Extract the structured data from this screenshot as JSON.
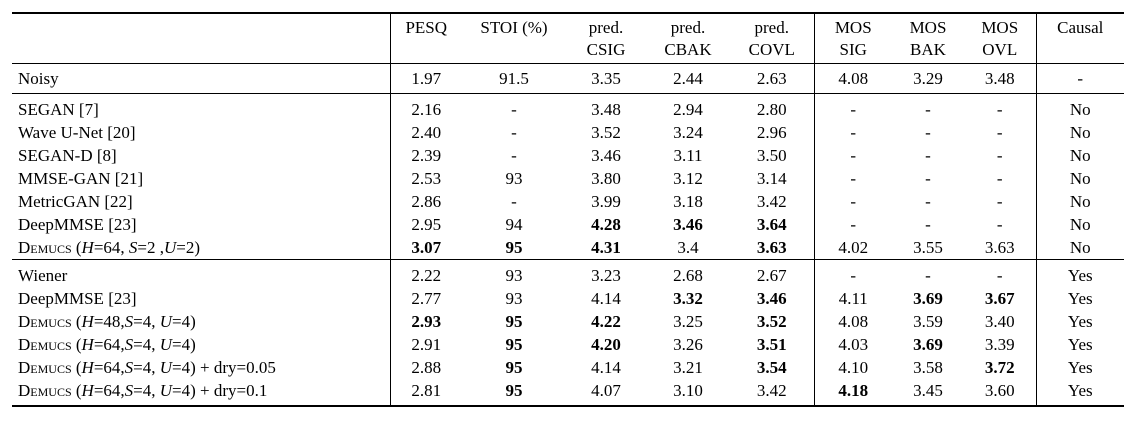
{
  "header": {
    "method": "",
    "pesq": "PESQ",
    "stoi": "STOI (%)",
    "csig": [
      "pred.",
      "CSIG"
    ],
    "cbak": [
      "pred.",
      "CBAK"
    ],
    "covl": [
      "pred.",
      "COVL"
    ],
    "mos_sig": [
      "MOS",
      "SIG"
    ],
    "mos_bak": [
      "MOS",
      "BAK"
    ],
    "mos_ovl": [
      "MOS",
      "OVL"
    ],
    "causal": "Causal"
  },
  "groups": [
    [
      {
        "name": "Noisy",
        "cells": [
          {
            "v": "1.97"
          },
          {
            "v": "91.5"
          },
          {
            "v": "3.35"
          },
          {
            "v": "2.44"
          },
          {
            "v": "2.63"
          },
          {
            "v": "4.08"
          },
          {
            "v": "3.29"
          },
          {
            "v": "3.48"
          },
          {
            "v": "-"
          }
        ]
      }
    ],
    [
      {
        "name": "SEGAN [7]",
        "cells": [
          {
            "v": "2.16"
          },
          {
            "v": "-"
          },
          {
            "v": "3.48"
          },
          {
            "v": "2.94"
          },
          {
            "v": "2.80"
          },
          {
            "v": "-"
          },
          {
            "v": "-"
          },
          {
            "v": "-"
          },
          {
            "v": "No"
          }
        ]
      },
      {
        "name": "Wave U-Net [20]",
        "cells": [
          {
            "v": "2.40"
          },
          {
            "v": "-"
          },
          {
            "v": "3.52"
          },
          {
            "v": "3.24"
          },
          {
            "v": "2.96"
          },
          {
            "v": "-"
          },
          {
            "v": "-"
          },
          {
            "v": "-"
          },
          {
            "v": "No"
          }
        ]
      },
      {
        "name": "SEGAN-D [8]",
        "cells": [
          {
            "v": "2.39"
          },
          {
            "v": "-"
          },
          {
            "v": "3.46"
          },
          {
            "v": "3.11"
          },
          {
            "v": "3.50"
          },
          {
            "v": "-"
          },
          {
            "v": "-"
          },
          {
            "v": "-"
          },
          {
            "v": "No"
          }
        ]
      },
      {
        "name": "MMSE-GAN [21]",
        "cells": [
          {
            "v": "2.53"
          },
          {
            "v": "93"
          },
          {
            "v": "3.80"
          },
          {
            "v": "3.12"
          },
          {
            "v": "3.14"
          },
          {
            "v": "-"
          },
          {
            "v": "-"
          },
          {
            "v": "-"
          },
          {
            "v": "No"
          }
        ]
      },
      {
        "name": "MetricGAN [22]",
        "cells": [
          {
            "v": "2.86"
          },
          {
            "v": "-"
          },
          {
            "v": "3.99"
          },
          {
            "v": "3.18"
          },
          {
            "v": "3.42"
          },
          {
            "v": "-"
          },
          {
            "v": "-"
          },
          {
            "v": "-"
          },
          {
            "v": "No"
          }
        ]
      },
      {
        "name": "DeepMMSE [23]",
        "cells": [
          {
            "v": "2.95"
          },
          {
            "v": "94"
          },
          {
            "v": "4.28",
            "b": true
          },
          {
            "v": "3.46",
            "b": true
          },
          {
            "v": "3.64",
            "b": true
          },
          {
            "v": "-"
          },
          {
            "v": "-"
          },
          {
            "v": "-"
          },
          {
            "v": "No"
          }
        ]
      },
      {
        "name_parts": [
          {
            "t": "Demucs",
            "sc": true
          },
          {
            "t": " ("
          },
          {
            "t": "H",
            "i": true
          },
          {
            "t": "=64, "
          },
          {
            "t": "S",
            "i": true
          },
          {
            "t": "=2 ,"
          },
          {
            "t": "U",
            "i": true
          },
          {
            "t": "=2)"
          }
        ],
        "cells": [
          {
            "v": "3.07",
            "b": true
          },
          {
            "v": "95",
            "b": true
          },
          {
            "v": "4.31",
            "b": true
          },
          {
            "v": "3.4"
          },
          {
            "v": "3.63",
            "b": true
          },
          {
            "v": "4.02"
          },
          {
            "v": "3.55"
          },
          {
            "v": "3.63"
          },
          {
            "v": "No"
          }
        ]
      }
    ],
    [
      {
        "name": "Wiener",
        "cells": [
          {
            "v": "2.22"
          },
          {
            "v": "93"
          },
          {
            "v": "3.23"
          },
          {
            "v": "2.68"
          },
          {
            "v": "2.67"
          },
          {
            "v": "-"
          },
          {
            "v": "-"
          },
          {
            "v": "-"
          },
          {
            "v": "Yes"
          }
        ]
      },
      {
        "name": "DeepMMSE [23]",
        "cells": [
          {
            "v": "2.77"
          },
          {
            "v": "93"
          },
          {
            "v": "4.14"
          },
          {
            "v": "3.32",
            "b": true
          },
          {
            "v": "3.46",
            "b": true
          },
          {
            "v": "4.11"
          },
          {
            "v": "3.69",
            "b": true
          },
          {
            "v": "3.67",
            "b": true
          },
          {
            "v": "Yes"
          }
        ]
      },
      {
        "name_parts": [
          {
            "t": "Demucs",
            "sc": true
          },
          {
            "t": " ("
          },
          {
            "t": "H",
            "i": true
          },
          {
            "t": "=48,"
          },
          {
            "t": "S",
            "i": true
          },
          {
            "t": "=4, "
          },
          {
            "t": "U",
            "i": true
          },
          {
            "t": "=4)"
          }
        ],
        "cells": [
          {
            "v": "2.93",
            "b": true
          },
          {
            "v": "95",
            "b": true
          },
          {
            "v": "4.22",
            "b": true
          },
          {
            "v": "3.25"
          },
          {
            "v": "3.52",
            "b": true
          },
          {
            "v": "4.08"
          },
          {
            "v": "3.59"
          },
          {
            "v": "3.40"
          },
          {
            "v": "Yes"
          }
        ]
      },
      {
        "name_parts": [
          {
            "t": "Demucs",
            "sc": true
          },
          {
            "t": " ("
          },
          {
            "t": "H",
            "i": true
          },
          {
            "t": "=64,"
          },
          {
            "t": "S",
            "i": true
          },
          {
            "t": "=4, "
          },
          {
            "t": "U",
            "i": true
          },
          {
            "t": "=4)"
          }
        ],
        "cells": [
          {
            "v": "2.91"
          },
          {
            "v": "95",
            "b": true
          },
          {
            "v": "4.20",
            "b": true
          },
          {
            "v": "3.26"
          },
          {
            "v": "3.51",
            "b": true
          },
          {
            "v": "4.03"
          },
          {
            "v": "3.69",
            "b": true
          },
          {
            "v": "3.39"
          },
          {
            "v": "Yes"
          }
        ]
      },
      {
        "name_parts": [
          {
            "t": "Demucs",
            "sc": true
          },
          {
            "t": " ("
          },
          {
            "t": "H",
            "i": true
          },
          {
            "t": "=64,"
          },
          {
            "t": "S",
            "i": true
          },
          {
            "t": "=4, "
          },
          {
            "t": "U",
            "i": true
          },
          {
            "t": "=4) + dry=0.05"
          }
        ],
        "cells": [
          {
            "v": "2.88"
          },
          {
            "v": "95",
            "b": true
          },
          {
            "v": "4.14"
          },
          {
            "v": "3.21"
          },
          {
            "v": "3.54",
            "b": true
          },
          {
            "v": "4.10"
          },
          {
            "v": "3.58"
          },
          {
            "v": "3.72",
            "b": true
          },
          {
            "v": "Yes"
          }
        ]
      },
      {
        "name_parts": [
          {
            "t": "Demucs",
            "sc": true
          },
          {
            "t": " ("
          },
          {
            "t": "H",
            "i": true
          },
          {
            "t": "=64,"
          },
          {
            "t": "S",
            "i": true
          },
          {
            "t": "=4, "
          },
          {
            "t": "U",
            "i": true
          },
          {
            "t": "=4) + dry=0.1"
          }
        ],
        "cells": [
          {
            "v": "2.81"
          },
          {
            "v": "95",
            "b": true
          },
          {
            "v": "4.07"
          },
          {
            "v": "3.10"
          },
          {
            "v": "3.42"
          },
          {
            "v": "4.18",
            "b": true
          },
          {
            "v": "3.45"
          },
          {
            "v": "3.60"
          },
          {
            "v": "Yes"
          }
        ]
      }
    ]
  ]
}
